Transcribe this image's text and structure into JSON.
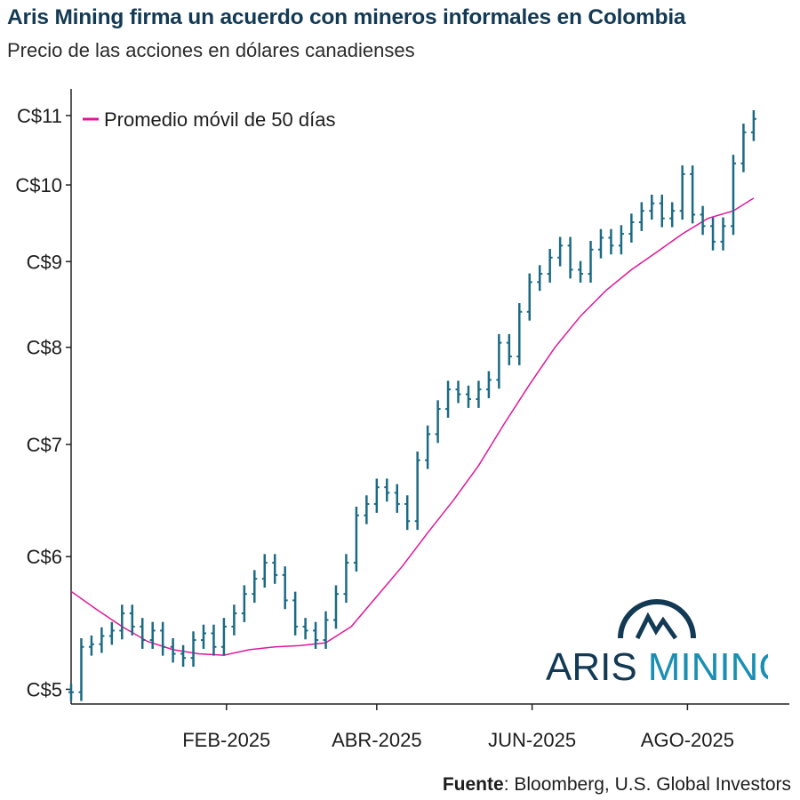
{
  "header": {
    "title": "Aris Mining firma un acuerdo con mineros informales en Colombia",
    "subtitle": "Precio de las acciones en dólares canadienses"
  },
  "source": {
    "label": "Fuente",
    "text": ": Bloomberg, U.S. Global Investors"
  },
  "logo": {
    "text_dark": "ARIS",
    "text_light": "MINING",
    "color_dark": "#133a55",
    "color_light": "#1a8fb3"
  },
  "colors": {
    "price": "#1b6a84",
    "moving_average": "#e0169a",
    "axis": "#222222"
  },
  "chart_data": {
    "type": "line",
    "y_scale": "log",
    "ylim": [
      4.9,
      11.3
    ],
    "xlim": [
      "2024-12-02",
      "2025-09-10"
    ],
    "y_ticks": [
      {
        "value": 5,
        "label": "C$5"
      },
      {
        "value": 6,
        "label": "C$6"
      },
      {
        "value": 7,
        "label": "C$7"
      },
      {
        "value": 8,
        "label": "C$8"
      },
      {
        "value": 9,
        "label": "C$9"
      },
      {
        "value": 10,
        "label": "C$10"
      },
      {
        "value": 11,
        "label": "C$11"
      }
    ],
    "x_ticks": [
      {
        "date": "2025-02-01",
        "label": "FEB-2025"
      },
      {
        "date": "2025-04-01",
        "label": "ABR-2025"
      },
      {
        "date": "2025-06-01",
        "label": "JUN-2025"
      },
      {
        "date": "2025-08-01",
        "label": "AGO-2025"
      }
    ],
    "legend": {
      "position": "top-left"
    },
    "series": [
      {
        "name": "",
        "style": "ohlc",
        "points": [
          [
            "2024-12-02",
            4.98
          ],
          [
            "2024-12-06",
            5.3
          ],
          [
            "2024-12-10",
            5.32
          ],
          [
            "2024-12-14",
            5.38
          ],
          [
            "2024-12-18",
            5.42
          ],
          [
            "2024-12-22",
            5.55
          ],
          [
            "2024-12-26",
            5.45
          ],
          [
            "2024-12-30",
            5.35
          ],
          [
            "2025-01-03",
            5.42
          ],
          [
            "2025-01-07",
            5.3
          ],
          [
            "2025-01-11",
            5.25
          ],
          [
            "2025-01-15",
            5.22
          ],
          [
            "2025-01-19",
            5.35
          ],
          [
            "2025-01-23",
            5.4
          ],
          [
            "2025-01-27",
            5.3
          ],
          [
            "2025-01-31",
            5.45
          ],
          [
            "2025-02-04",
            5.55
          ],
          [
            "2025-02-08",
            5.7
          ],
          [
            "2025-02-12",
            5.82
          ],
          [
            "2025-02-16",
            5.95
          ],
          [
            "2025-02-20",
            5.85
          ],
          [
            "2025-02-24",
            5.65
          ],
          [
            "2025-02-28",
            5.45
          ],
          [
            "2025-03-04",
            5.42
          ],
          [
            "2025-03-08",
            5.35
          ],
          [
            "2025-03-12",
            5.5
          ],
          [
            "2025-03-16",
            5.7
          ],
          [
            "2025-03-20",
            5.95
          ],
          [
            "2025-03-24",
            6.35
          ],
          [
            "2025-03-28",
            6.45
          ],
          [
            "2025-04-01",
            6.6
          ],
          [
            "2025-04-05",
            6.55
          ],
          [
            "2025-04-09",
            6.45
          ],
          [
            "2025-04-13",
            6.3
          ],
          [
            "2025-04-17",
            6.85
          ],
          [
            "2025-04-21",
            7.1
          ],
          [
            "2025-04-25",
            7.35
          ],
          [
            "2025-04-29",
            7.55
          ],
          [
            "2025-05-03",
            7.5
          ],
          [
            "2025-05-07",
            7.45
          ],
          [
            "2025-05-11",
            7.55
          ],
          [
            "2025-05-15",
            7.65
          ],
          [
            "2025-05-19",
            8.05
          ],
          [
            "2025-05-23",
            7.9
          ],
          [
            "2025-05-27",
            8.4
          ],
          [
            "2025-05-31",
            8.75
          ],
          [
            "2025-06-04",
            8.85
          ],
          [
            "2025-06-08",
            9.05
          ],
          [
            "2025-06-12",
            9.2
          ],
          [
            "2025-06-16",
            8.9
          ],
          [
            "2025-06-20",
            8.85
          ],
          [
            "2025-06-24",
            9.15
          ],
          [
            "2025-06-28",
            9.3
          ],
          [
            "2025-07-02",
            9.2
          ],
          [
            "2025-07-06",
            9.35
          ],
          [
            "2025-07-10",
            9.5
          ],
          [
            "2025-07-14",
            9.65
          ],
          [
            "2025-07-18",
            9.75
          ],
          [
            "2025-07-22",
            9.55
          ],
          [
            "2025-07-26",
            9.65
          ],
          [
            "2025-07-30",
            10.15
          ],
          [
            "2025-08-03",
            9.6
          ],
          [
            "2025-08-07",
            9.45
          ],
          [
            "2025-08-11",
            9.25
          ],
          [
            "2025-08-15",
            9.45
          ],
          [
            "2025-08-19",
            10.3
          ],
          [
            "2025-08-23",
            10.75
          ],
          [
            "2025-08-27",
            10.95
          ]
        ]
      },
      {
        "name": "Promedio móvil de 50 días",
        "style": "line",
        "points": [
          [
            "2024-12-02",
            5.72
          ],
          [
            "2024-12-12",
            5.58
          ],
          [
            "2024-12-22",
            5.45
          ],
          [
            "2025-01-01",
            5.34
          ],
          [
            "2025-01-11",
            5.28
          ],
          [
            "2025-01-21",
            5.25
          ],
          [
            "2025-01-31",
            5.24
          ],
          [
            "2025-02-10",
            5.28
          ],
          [
            "2025-02-20",
            5.3
          ],
          [
            "2025-03-02",
            5.31
          ],
          [
            "2025-03-12",
            5.33
          ],
          [
            "2025-03-22",
            5.45
          ],
          [
            "2025-04-01",
            5.68
          ],
          [
            "2025-04-11",
            5.92
          ],
          [
            "2025-04-21",
            6.2
          ],
          [
            "2025-05-01",
            6.48
          ],
          [
            "2025-05-11",
            6.8
          ],
          [
            "2025-05-21",
            7.2
          ],
          [
            "2025-05-31",
            7.6
          ],
          [
            "2025-06-10",
            8.0
          ],
          [
            "2025-06-20",
            8.35
          ],
          [
            "2025-06-30",
            8.65
          ],
          [
            "2025-07-10",
            8.9
          ],
          [
            "2025-07-20",
            9.12
          ],
          [
            "2025-07-30",
            9.35
          ],
          [
            "2025-08-09",
            9.55
          ],
          [
            "2025-08-19",
            9.65
          ],
          [
            "2025-08-27",
            9.82
          ]
        ]
      }
    ]
  }
}
